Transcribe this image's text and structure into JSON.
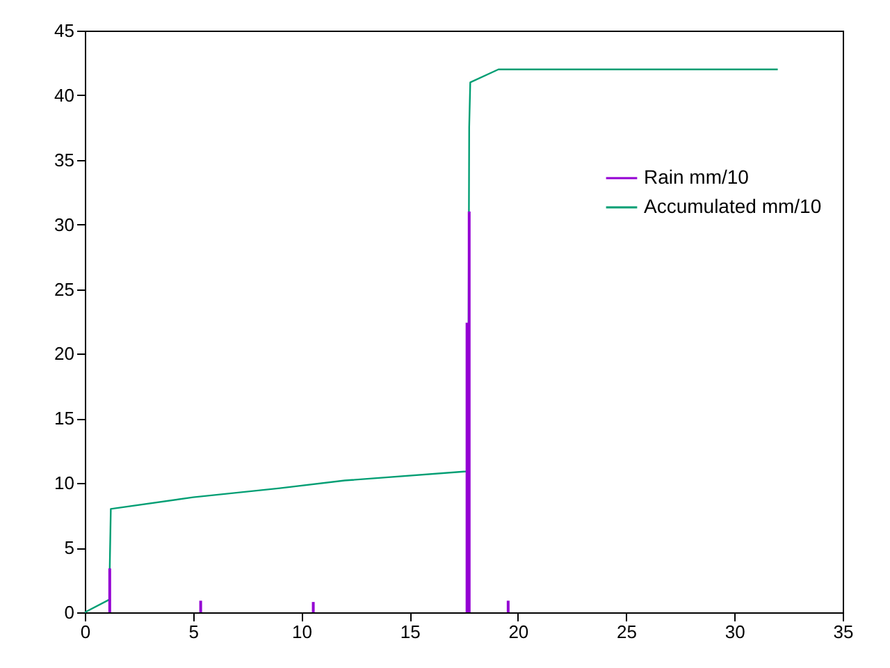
{
  "chart_data": {
    "type": "line",
    "xlim": [
      0,
      35
    ],
    "xticks": [
      0,
      5,
      10,
      15,
      20,
      25,
      30,
      35
    ],
    "ylim": [
      0,
      45
    ],
    "yticks": [
      0,
      5,
      10,
      15,
      20,
      25,
      30,
      35,
      40,
      45
    ],
    "grid": false,
    "legend": "top right",
    "series": [
      {
        "name": "Rain mm/10",
        "type": "bar",
        "color": "#9400d3",
        "x": [
          1.15,
          5.35,
          10.55,
          17.65,
          17.75,
          19.55
        ],
        "values": [
          3.4,
          0.9,
          0.8,
          22.4,
          31,
          0.9
        ]
      },
      {
        "name": "Accumulated mm/10",
        "color": "#009e73",
        "x": [
          0,
          1.15,
          1.15,
          1.2,
          5,
          9,
          12,
          17.6,
          17.7,
          17.75,
          17.8,
          19.1,
          32
        ],
        "values": [
          0,
          1,
          3.4,
          8,
          8.9,
          9.6,
          10.2,
          10.9,
          11,
          37.5,
          41,
          42,
          42
        ]
      }
    ]
  }
}
